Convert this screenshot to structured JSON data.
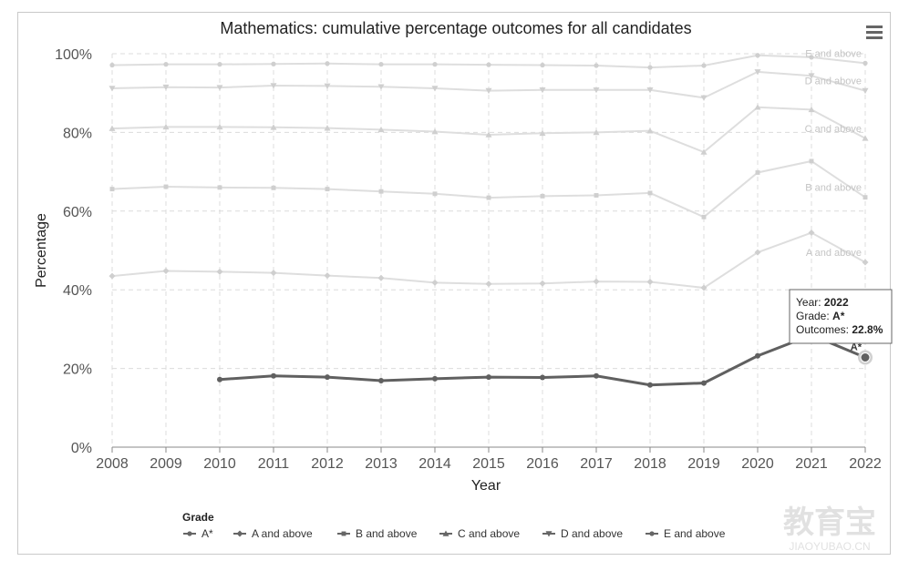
{
  "chart_data": {
    "type": "line",
    "title": "Mathematics: cumulative percentage outcomes for all candidates",
    "xlabel": "Year",
    "ylabel": "Percentage",
    "x": [
      2008,
      2009,
      2010,
      2011,
      2012,
      2013,
      2014,
      2015,
      2016,
      2017,
      2018,
      2019,
      2020,
      2021,
      2022
    ],
    "ylim": [
      0,
      100
    ],
    "yticks": [
      0,
      20,
      40,
      60,
      80,
      100
    ],
    "ytick_labels": [
      "0%",
      "20%",
      "40%",
      "60%",
      "80%",
      "100%"
    ],
    "grid": true,
    "legend_title": "Grade",
    "legend_position": "bottom-left",
    "series": [
      {
        "name": "A*",
        "label": "A*",
        "active": true,
        "marker": "circle",
        "color": "#606060",
        "values": [
          null,
          null,
          17.2,
          18.1,
          17.8,
          16.9,
          17.4,
          17.8,
          17.7,
          18.1,
          15.8,
          16.3,
          23.2,
          28.5,
          22.8
        ]
      },
      {
        "name": "A and above",
        "label": "A and above",
        "active": false,
        "marker": "diamond",
        "color": "#dedede",
        "values": [
          43.5,
          44.8,
          44.6,
          44.3,
          43.6,
          43.0,
          41.8,
          41.5,
          41.6,
          42.1,
          42.0,
          40.5,
          49.5,
          54.5,
          47.0
        ]
      },
      {
        "name": "B and above",
        "label": "B and above",
        "active": false,
        "marker": "square",
        "color": "#dedede",
        "values": [
          65.6,
          66.2,
          66.0,
          65.9,
          65.6,
          65.0,
          64.4,
          63.4,
          63.8,
          64.0,
          64.6,
          58.5,
          69.8,
          72.7,
          63.5
        ]
      },
      {
        "name": "C and above",
        "label": "C and above",
        "active": false,
        "marker": "triangle",
        "color": "#dedede",
        "values": [
          81.0,
          81.4,
          81.4,
          81.3,
          81.1,
          80.7,
          80.2,
          79.4,
          79.8,
          80.0,
          80.4,
          75.0,
          86.4,
          85.8,
          78.5
        ]
      },
      {
        "name": "D and above",
        "label": "D and above",
        "active": false,
        "marker": "triangle-down",
        "color": "#dedede",
        "values": [
          91.2,
          91.5,
          91.4,
          91.9,
          91.8,
          91.6,
          91.2,
          90.6,
          90.8,
          90.8,
          90.8,
          88.8,
          95.4,
          94.4,
          90.6
        ]
      },
      {
        "name": "E and above",
        "label": "E and above",
        "active": false,
        "marker": "circle",
        "color": "#dedede",
        "values": [
          97.1,
          97.3,
          97.3,
          97.4,
          97.5,
          97.3,
          97.3,
          97.2,
          97.1,
          97.0,
          96.5,
          97.0,
          99.6,
          99.1,
          97.6
        ]
      }
    ],
    "tooltip": {
      "year_label": "Year: ",
      "year_value": "2022",
      "grade_label": "Grade: ",
      "grade_value": "A*",
      "outcomes_label": "Outcomes: ",
      "outcomes_value": "22.8%"
    }
  },
  "menu_icon": "hamburger-menu-icon",
  "watermark_text": "教育宝",
  "watermark_url": "JIAOYUBAO.CN"
}
